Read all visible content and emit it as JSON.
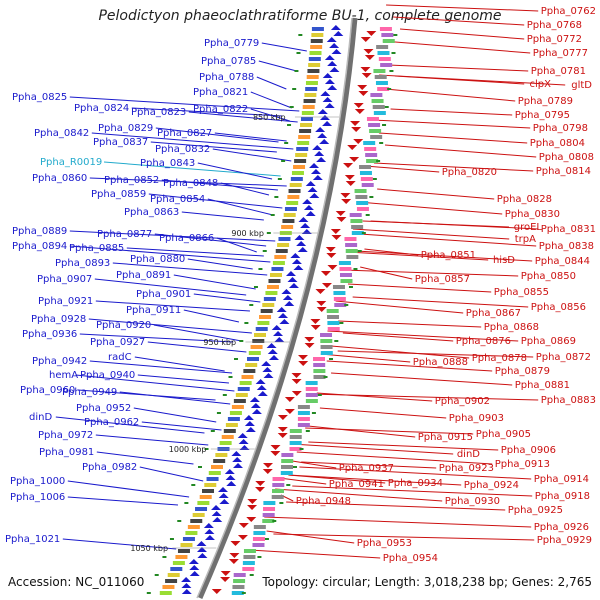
{
  "title": "Pelodictyon phaeoclathratiforme BU-1, complete genome",
  "footer": {
    "accession": "Accession: NC_011060",
    "topology": "Topology: circular; Length: 3,018,238 bp; Genes: 2,765"
  },
  "ticks": [
    "850 kbp",
    "900 kbp",
    "950 kbp",
    "1000 kbp",
    "1050 kbp"
  ],
  "colors": {
    "forward": "#1a1acc",
    "reverse": "#cc1111",
    "rna": "#22aacc",
    "backbone": "#707070"
  },
  "left_labels": [
    {
      "text": "Ppha_0779",
      "color": "forward"
    },
    {
      "text": "Ppha_0785",
      "color": "forward"
    },
    {
      "text": "Ppha_0788",
      "color": "forward"
    },
    {
      "text": "Ppha_0825",
      "color": "forward"
    },
    {
      "text": "Ppha_0821",
      "color": "forward"
    },
    {
      "text": "Ppha_0824",
      "color": "forward"
    },
    {
      "text": "Ppha_0823",
      "color": "forward"
    },
    {
      "text": "Ppha_0822",
      "color": "forward"
    },
    {
      "text": "Ppha_0829",
      "color": "forward"
    },
    {
      "text": "Ppha_0842",
      "color": "forward"
    },
    {
      "text": "Ppha_0827",
      "color": "forward"
    },
    {
      "text": "Ppha_0837",
      "color": "forward"
    },
    {
      "text": "Ppha_0832",
      "color": "forward"
    },
    {
      "text": "Ppha_R0019",
      "color": "rna"
    },
    {
      "text": "Ppha_0843",
      "color": "forward"
    },
    {
      "text": "Ppha_0860",
      "color": "forward"
    },
    {
      "text": "Ppha_0852",
      "color": "forward"
    },
    {
      "text": "Ppha_0848",
      "color": "forward"
    },
    {
      "text": "Ppha_0859",
      "color": "forward"
    },
    {
      "text": "Ppha_0854",
      "color": "forward"
    },
    {
      "text": "Ppha_0863",
      "color": "forward"
    },
    {
      "text": "Ppha_0889",
      "color": "forward"
    },
    {
      "text": "Ppha_0877",
      "color": "forward"
    },
    {
      "text": "Ppha_0866",
      "color": "forward"
    },
    {
      "text": "Ppha_0894",
      "color": "forward"
    },
    {
      "text": "Ppha_0885",
      "color": "forward"
    },
    {
      "text": "Ppha_0880",
      "color": "forward"
    },
    {
      "text": "Ppha_0893",
      "color": "forward"
    },
    {
      "text": "Ppha_0891",
      "color": "forward"
    },
    {
      "text": "Ppha_0907",
      "color": "forward"
    },
    {
      "text": "Ppha_0901",
      "color": "forward"
    },
    {
      "text": "Ppha_0921",
      "color": "forward"
    },
    {
      "text": "Ppha_0911",
      "color": "forward"
    },
    {
      "text": "Ppha_0928",
      "color": "forward"
    },
    {
      "text": "Ppha_0920",
      "color": "forward"
    },
    {
      "text": "Ppha_0936",
      "color": "forward"
    },
    {
      "text": "Ppha_0927",
      "color": "forward"
    },
    {
      "text": "Ppha_0942",
      "color": "forward"
    },
    {
      "text": "radC",
      "color": "forward"
    },
    {
      "text": "hemA",
      "color": "forward"
    },
    {
      "text": "Ppha_0940",
      "color": "forward"
    },
    {
      "text": "Ppha_0960",
      "color": "forward"
    },
    {
      "text": "Ppha_0949",
      "color": "forward"
    },
    {
      "text": "Ppha_0952",
      "color": "forward"
    },
    {
      "text": "dinD",
      "color": "forward"
    },
    {
      "text": "Ppha_0962",
      "color": "forward"
    },
    {
      "text": "Ppha_0972",
      "color": "forward"
    },
    {
      "text": "Ppha_0981",
      "color": "forward"
    },
    {
      "text": "Ppha_0982",
      "color": "forward"
    },
    {
      "text": "Ppha_1000",
      "color": "forward"
    },
    {
      "text": "Ppha_1006",
      "color": "forward"
    },
    {
      "text": "Ppha_1021",
      "color": "forward"
    }
  ],
  "right_labels": [
    {
      "text": "Ppha_0762"
    },
    {
      "text": "Ppha_0768"
    },
    {
      "text": "Ppha_0772"
    },
    {
      "text": "Ppha_0777"
    },
    {
      "text": "Ppha_0781"
    },
    {
      "text": "clpX"
    },
    {
      "text": "gltD"
    },
    {
      "text": "Ppha_0789"
    },
    {
      "text": "Ppha_0795"
    },
    {
      "text": "Ppha_0798"
    },
    {
      "text": "Ppha_0804"
    },
    {
      "text": "Ppha_0808"
    },
    {
      "text": "Ppha_0820"
    },
    {
      "text": "Ppha_0814"
    },
    {
      "text": "Ppha_0828"
    },
    {
      "text": "Ppha_0830"
    },
    {
      "text": "groEL"
    },
    {
      "text": "Ppha_0831"
    },
    {
      "text": "trpA"
    },
    {
      "text": "Ppha_0838"
    },
    {
      "text": "Ppha_0851"
    },
    {
      "text": "hisD"
    },
    {
      "text": "Ppha_0844"
    },
    {
      "text": "Ppha_0857"
    },
    {
      "text": "Ppha_0850"
    },
    {
      "text": "Ppha_0855"
    },
    {
      "text": "Ppha_0856"
    },
    {
      "text": "Ppha_0867"
    },
    {
      "text": "Ppha_0868"
    },
    {
      "text": "Ppha_0876"
    },
    {
      "text": "Ppha_0869"
    },
    {
      "text": "Ppha_0878"
    },
    {
      "text": "Ppha_0872"
    },
    {
      "text": "Ppha_0888"
    },
    {
      "text": "Ppha_0879"
    },
    {
      "text": "Ppha_0881"
    },
    {
      "text": "Ppha_0883"
    },
    {
      "text": "Ppha_0902"
    },
    {
      "text": "Ppha_0903"
    },
    {
      "text": "Ppha_0915"
    },
    {
      "text": "Ppha_0905"
    },
    {
      "text": "Ppha_0906"
    },
    {
      "text": "dinD"
    },
    {
      "text": "Ppha_0913"
    },
    {
      "text": "Ppha_0923"
    },
    {
      "text": "Ppha_0937"
    },
    {
      "text": "Ppha_0924"
    },
    {
      "text": "Ppha_0914"
    },
    {
      "text": "Ppha_0941"
    },
    {
      "text": "Ppha_0934"
    },
    {
      "text": "Ppha_0918"
    },
    {
      "text": "Ppha_0930"
    },
    {
      "text": "Ppha_0948"
    },
    {
      "text": "Ppha_0925"
    },
    {
      "text": "Ppha_0926"
    },
    {
      "text": "Ppha_0953"
    },
    {
      "text": "Ppha_0929"
    },
    {
      "text": "Ppha_0954"
    }
  ]
}
